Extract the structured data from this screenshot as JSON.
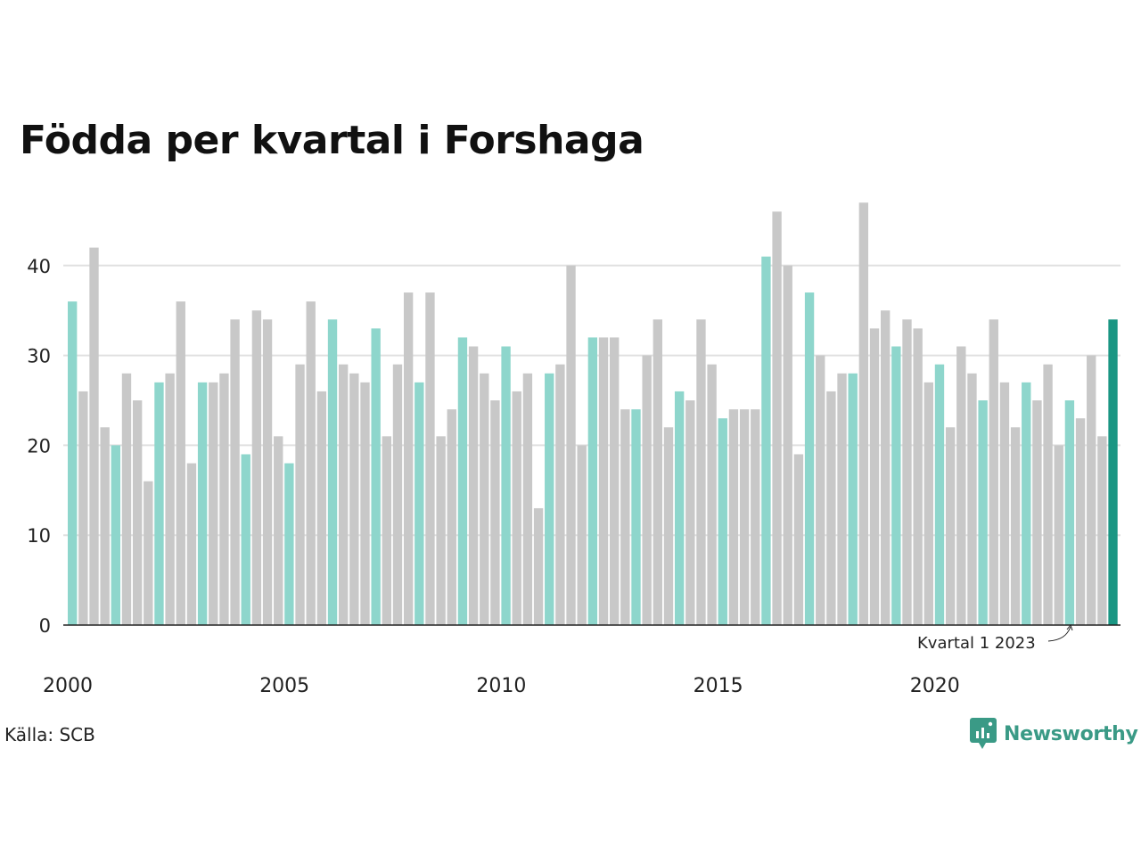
{
  "title": "Födda per kvartal i Forshaga",
  "source": "Källa: SCB",
  "brand": "Newsworthy",
  "annotation": "Kvartal 1 2023",
  "colors": {
    "q1": "#8ed6cc",
    "other": "#c8c8c8",
    "latest": "#1a9683",
    "grid": "#e0e0e0",
    "axis": "#222222",
    "brand": "#3a9a86"
  },
  "chart_data": {
    "type": "bar",
    "title": "Födda per kvartal i Forshaga",
    "xlabel": "",
    "ylabel": "",
    "ylim": [
      0,
      47
    ],
    "yticks": [
      "0",
      "10",
      "20",
      "30",
      "40"
    ],
    "xtick_labels": [
      "2000",
      "2005",
      "2010",
      "2015",
      "2020"
    ],
    "grid": "horizontal",
    "highlight": "Kvartal 1 2023",
    "years": [
      "2000",
      "2001",
      "2002",
      "2003",
      "2004",
      "2005",
      "2006",
      "2007",
      "2008",
      "2009",
      "2010",
      "2011",
      "2012",
      "2013",
      "2014",
      "2015",
      "2016",
      "2017",
      "2018",
      "2019",
      "2020",
      "2021",
      "2022",
      "2023"
    ],
    "quarters": [
      "Q1",
      "Q2",
      "Q3",
      "Q4"
    ],
    "values": [
      36,
      26,
      42,
      22,
      20,
      28,
      25,
      16,
      27,
      28,
      36,
      18,
      27,
      27,
      28,
      34,
      19,
      35,
      34,
      21,
      18,
      29,
      36,
      26,
      34,
      29,
      28,
      27,
      33,
      21,
      29,
      37,
      27,
      37,
      21,
      24,
      32,
      31,
      28,
      25,
      31,
      26,
      28,
      13,
      28,
      29,
      40,
      20,
      32,
      32,
      32,
      24,
      24,
      30,
      34,
      22,
      26,
      25,
      34,
      29,
      23,
      24,
      24,
      24,
      41,
      46,
      40,
      19,
      37,
      30,
      26,
      28,
      28,
      47,
      33,
      35,
      31,
      34,
      33,
      27,
      29,
      22,
      31,
      28,
      25,
      34,
      27,
      22,
      27,
      25,
      29,
      20,
      25,
      23,
      30,
      21,
      34
    ]
  }
}
